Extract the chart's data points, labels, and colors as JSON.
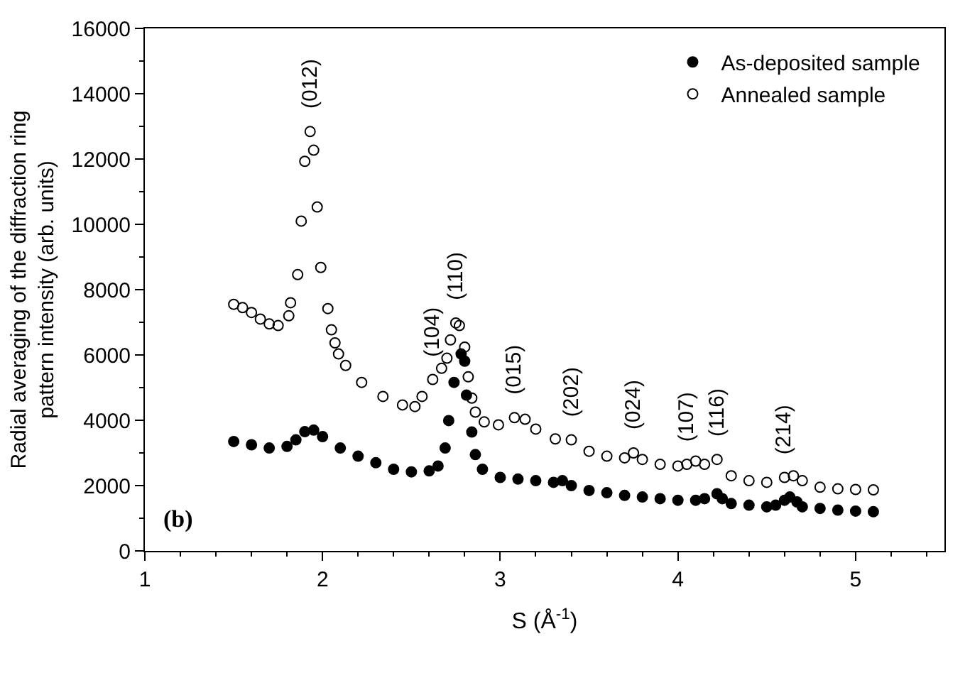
{
  "chart_data": {
    "type": "scatter",
    "xlabel": "S (Å$^{-1}$)",
    "ylabel": "Radial averaging of the diffraction ring\npattern intensity (arb. units)",
    "xlim": [
      1,
      5.5
    ],
    "xticks": [
      1,
      2,
      3,
      4,
      5
    ],
    "ylim": [
      0,
      16000
    ],
    "yticks": [
      0,
      2000,
      4000,
      6000,
      8000,
      10000,
      12000,
      14000,
      16000
    ],
    "legend": "top right",
    "series": [
      {
        "name": "As-deposited sample",
        "color": "#000000",
        "marker": "circle",
        "x": [
          1.5,
          1.6,
          1.7,
          1.8,
          1.85,
          1.9,
          1.95,
          2.0,
          2.1,
          2.2,
          2.3,
          2.4,
          2.5,
          2.6,
          2.65,
          2.69,
          2.71,
          2.74,
          2.78,
          2.8,
          2.81,
          2.84,
          2.86,
          2.9,
          3.0,
          3.1,
          3.2,
          3.3,
          3.35,
          3.4,
          3.5,
          3.6,
          3.7,
          3.8,
          3.9,
          4.0,
          4.1,
          4.15,
          4.22,
          4.25,
          4.3,
          4.4,
          4.5,
          4.55,
          4.6,
          4.63,
          4.67,
          4.7,
          4.8,
          4.9,
          5.0,
          5.1
        ],
        "values": [
          3350,
          3250,
          3150,
          3200,
          3400,
          3650,
          3700,
          3500,
          3150,
          2900,
          2700,
          2500,
          2420,
          2450,
          2600,
          3150,
          3990,
          5160,
          6030,
          5810,
          4770,
          3640,
          2950,
          2500,
          2250,
          2200,
          2150,
          2100,
          2150,
          2000,
          1850,
          1780,
          1700,
          1650,
          1600,
          1550,
          1550,
          1600,
          1750,
          1600,
          1450,
          1400,
          1350,
          1400,
          1550,
          1650,
          1500,
          1350,
          1300,
          1250,
          1220,
          1200
        ]
      },
      {
        "name": "Annealed sample",
        "color": "#000000",
        "marker": "circle-open",
        "x": [
          1.5,
          1.55,
          1.6,
          1.65,
          1.7,
          1.75,
          1.81,
          1.82,
          1.86,
          1.88,
          1.9,
          1.93,
          1.95,
          1.97,
          1.99,
          2.03,
          2.05,
          2.07,
          2.09,
          2.13,
          2.22,
          2.34,
          2.45,
          2.52,
          2.56,
          2.62,
          2.67,
          2.7,
          2.72,
          2.75,
          2.77,
          2.8,
          2.82,
          2.84,
          2.86,
          2.91,
          2.99,
          3.08,
          3.14,
          3.2,
          3.31,
          3.4,
          3.5,
          3.6,
          3.7,
          3.75,
          3.8,
          3.9,
          4.0,
          4.05,
          4.1,
          4.15,
          4.22,
          4.3,
          4.4,
          4.5,
          4.6,
          4.65,
          4.7,
          4.8,
          4.9,
          5.0,
          5.1
        ],
        "values": [
          7550,
          7450,
          7300,
          7100,
          6950,
          6900,
          7200,
          7600,
          8460,
          10100,
          11930,
          12840,
          12270,
          10530,
          8680,
          7420,
          6770,
          6370,
          6030,
          5680,
          5160,
          4730,
          4470,
          4420,
          4730,
          5250,
          5590,
          5900,
          6460,
          6980,
          6900,
          6240,
          5330,
          4680,
          4250,
          3950,
          3860,
          4080,
          4030,
          3730,
          3430,
          3400,
          3050,
          2900,
          2850,
          3000,
          2800,
          2650,
          2600,
          2650,
          2750,
          2650,
          2800,
          2300,
          2150,
          2100,
          2250,
          2300,
          2150,
          1950,
          1900,
          1880,
          1870
        ]
      }
    ],
    "annotations": [
      {
        "text": "(012)",
        "x": 1.93,
        "y": 12840
      },
      {
        "text": "(104)",
        "x": 2.62,
        "y": 5250
      },
      {
        "text": "(110)",
        "x": 2.75,
        "y": 6980
      },
      {
        "text": "(015)",
        "x": 3.08,
        "y": 4080
      },
      {
        "text": "(202)",
        "x": 3.4,
        "y": 3400
      },
      {
        "text": "(024)",
        "x": 3.75,
        "y": 3000
      },
      {
        "text": "(107)",
        "x": 4.05,
        "y": 2650
      },
      {
        "text": "(116)",
        "x": 4.22,
        "y": 2800
      },
      {
        "text": "(214)",
        "x": 4.6,
        "y": 2250
      },
      "(b)"
    ]
  }
}
